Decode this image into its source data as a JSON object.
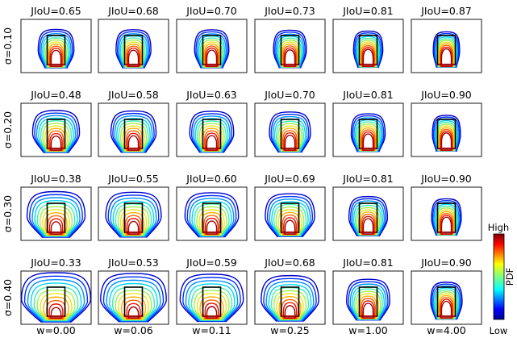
{
  "rows": [
    {
      "label": "σ=0.10",
      "sigma": 0.1,
      "jiou": [
        "JIoU=0.65",
        "JIoU=0.68",
        "JIoU=0.70",
        "JIoU=0.73",
        "JIoU=0.81",
        "JIoU=0.87"
      ]
    },
    {
      "label": "σ=0.20",
      "sigma": 0.2,
      "jiou": [
        "JIoU=0.48",
        "JIoU=0.58",
        "JIoU=0.63",
        "JIoU=0.70",
        "JIoU=0.81",
        "JIoU=0.90"
      ]
    },
    {
      "label": "σ=0.30",
      "sigma": 0.3,
      "jiou": [
        "JIoU=0.38",
        "JIoU=0.55",
        "JIoU=0.60",
        "JIoU=0.69",
        "JIoU=0.81",
        "JIoU=0.90"
      ]
    },
    {
      "label": "σ=0.40",
      "sigma": 0.4,
      "jiou": [
        "JIoU=0.33",
        "JIoU=0.53",
        "JIoU=0.59",
        "JIoU=0.68",
        "JIoU=0.81",
        "JIoU=0.90"
      ]
    }
  ],
  "columns": [
    {
      "label": "w=0.00",
      "w": 0.0
    },
    {
      "label": "w=0.06",
      "w": 0.06
    },
    {
      "label": "w=0.11",
      "w": 0.11
    },
    {
      "label": "w=0.25",
      "w": 0.25
    },
    {
      "label": "w=1.00",
      "w": 1.0
    },
    {
      "label": "w=4.00",
      "w": 4.0
    }
  ],
  "colorbar": {
    "high": "High",
    "low": "Low",
    "label": "PDF",
    "colormap": "jet"
  },
  "contour_colors": [
    "#0000cc",
    "#0030ff",
    "#0090ff",
    "#00d8f0",
    "#40f0b0",
    "#a0f050",
    "#e8e820",
    "#ffb000",
    "#ff6000",
    "#e81000",
    "#a00000"
  ],
  "box_color": "#000000",
  "point_color": "#e00000"
}
